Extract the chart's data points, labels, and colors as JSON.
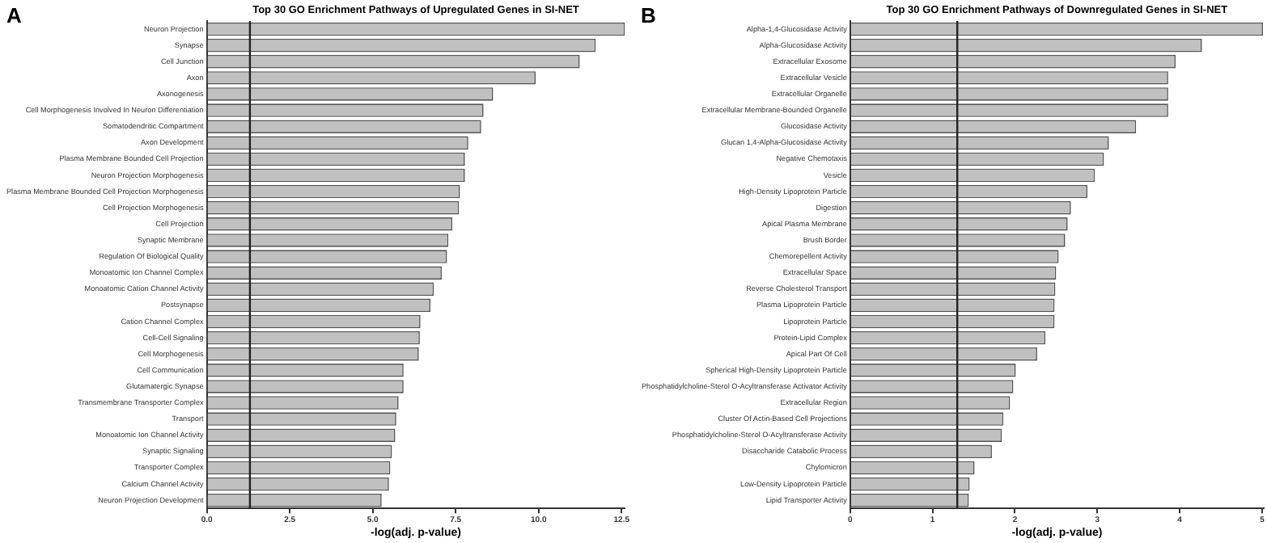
{
  "chart_data": [
    {
      "type": "bar",
      "orientation": "horizontal",
      "title": "Top 30 GO Enrichment Pathways of Upregulated Genes in SI-NET",
      "xlabel": "-log(adj. p-value)",
      "annotations": [
        "A"
      ],
      "grid": false,
      "color": "#c0c0c0",
      "categories": [
        "Neuron Projection",
        "Synapse",
        "Cell Junction",
        "Axon",
        "Axonogenesis",
        "Cell Morphogenesis Involved In Neuron Differentiation",
        "Somatodendritic Compartment",
        "Axon Development",
        "Plasma Membrane Bounded Cell Projection",
        "Neuron Projection Morphogenesis",
        "Plasma Membrane Bounded Cell Projection Morphogenesis",
        "Cell Projection Morphogenesis",
        "Cell Projection",
        "Synaptic Membrane",
        "Regulation Of Biological Quality",
        "Monoatomic Ion Channel Complex",
        "Monoatomic Cation Channel Activity",
        "Postsynapse",
        "Cation Channel Complex",
        "Cell-Cell Signaling",
        "Cell Morphogenesis",
        "Cell Communication",
        "Glutamatergic Synapse",
        "Transmembrane Transporter Complex",
        "Transport",
        "Monoatomic Ion Channel Activity",
        "Synaptic Signaling",
        "Transporter Complex",
        "Calcium Channel Activity",
        "Neuron Projection Development"
      ],
      "values": [
        12.6,
        11.72,
        11.24,
        9.91,
        8.63,
        8.34,
        8.27,
        7.88,
        7.78,
        7.78,
        7.63,
        7.6,
        7.4,
        7.28,
        7.24,
        7.08,
        6.84,
        6.74,
        6.44,
        6.42,
        6.39,
        5.93,
        5.93,
        5.78,
        5.71,
        5.68,
        5.58,
        5.53,
        5.49,
        5.27
      ],
      "xlim": [
        0,
        12.6
      ],
      "xticks": [
        {
          "value": 0,
          "label": "0.0"
        },
        2.5,
        {
          "value": 5,
          "label": "5.0"
        },
        7.5,
        {
          "value": 10,
          "label": "10.0"
        },
        12.5
      ],
      "ref_lines": [
        {
          "axis": "x",
          "value": 1.3,
          "color": "#222222"
        }
      ]
    },
    {
      "type": "bar",
      "orientation": "horizontal",
      "title": "Top 30 GO Enrichment Pathways of Downregulated Genes in SI-NET",
      "xlabel": "-log(adj. p-value)",
      "annotations": [
        "B"
      ],
      "grid": false,
      "color": "#c0c0c0",
      "categories": [
        "Alpha-1,4-Glucosidase Activity",
        "Alpha-Glucosidase Activity",
        "Extracellular Exosome",
        "Extracellular Vesicle",
        "Extracellular Organelle",
        "Extracellular Membrane-Bounded Organelle",
        "Glucosidase Activity",
        "Glucan 1,4-Alpha-Glucosidase Activity",
        "Negative Chemotaxis",
        "Vesicle",
        "High-Density Lipoprotein Particle",
        "Digestion",
        "Apical Plasma Membrane",
        "Brush Border",
        "Chemorepellent Activity",
        "Extracellular Space",
        "Reverse Cholesterol Transport",
        "Plasma Lipoprotein Particle",
        "Lipoprotein Particle",
        "Protein-Lipid Complex",
        "Apical Part Of Cell",
        "Spherical High-Density Lipoprotein Particle",
        "Phosphatidylcholine-Sterol O-Acyltransferase Activator Activity",
        "Extracellular Region",
        "Cluster Of Actin-Based Cell Projections",
        "Phosphatidylcholine-Sterol O-Acyltransferase Activity",
        "Disaccharide Catabolic Process",
        "Chylomicron",
        "Low-Density Lipoprotein Particle",
        "Lipid Transporter Activity"
      ],
      "values": [
        5.01,
        4.27,
        3.95,
        3.86,
        3.86,
        3.86,
        3.47,
        3.14,
        3.08,
        2.97,
        2.88,
        2.68,
        2.64,
        2.61,
        2.53,
        2.5,
        2.49,
        2.48,
        2.48,
        2.37,
        2.27,
        2.01,
        1.98,
        1.94,
        1.86,
        1.84,
        1.72,
        1.51,
        1.45,
        1.44
      ],
      "xlim": [
        0,
        5.02
      ],
      "xticks": [
        0,
        1,
        2,
        3,
        4,
        5
      ],
      "ref_lines": [
        {
          "axis": "x",
          "value": 1.3,
          "color": "#222222"
        }
      ]
    }
  ]
}
